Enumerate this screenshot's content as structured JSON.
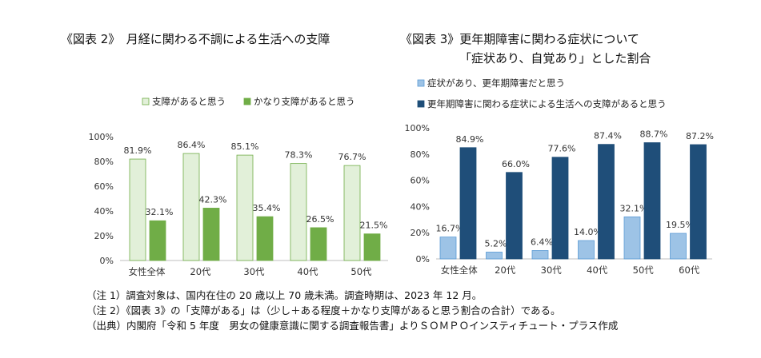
{
  "titles": {
    "chart1": "《図表 2》　月経に関わる不調による生活への支障",
    "chart2_line1": "《図表 3》更年期障害に関わる症状について",
    "chart2_line2": "「症状あり、自覚あり」とした割合"
  },
  "chart_data": [
    {
      "type": "bar",
      "categories": [
        "女性全体",
        "20代",
        "30代",
        "40代",
        "50代"
      ],
      "series": [
        {
          "name": "支障があると思う",
          "values": [
            81.9,
            86.4,
            85.1,
            78.3,
            76.7
          ],
          "labels": [
            "81.9%",
            "86.4%",
            "85.1%",
            "78.3%",
            "76.7%"
          ],
          "color": "#e2f0d9",
          "stroke": "#70ad47"
        },
        {
          "name": "かなり支障があると思う",
          "values": [
            32.1,
            42.3,
            35.4,
            26.5,
            21.5
          ],
          "labels": [
            "32.1%",
            "42.3%",
            "35.4%",
            "26.5%",
            "21.5%"
          ],
          "color": "#70ad47",
          "stroke": "#70ad47"
        }
      ],
      "yticks": [
        "0%",
        "20%",
        "40%",
        "60%",
        "80%",
        "100%"
      ],
      "ylim": [
        0,
        100
      ],
      "legend": "top"
    },
    {
      "type": "bar",
      "categories": [
        "女性全体",
        "20代",
        "30代",
        "40代",
        "50代",
        "60代"
      ],
      "series": [
        {
          "name": "症状があり、更年期障害だと思う",
          "values": [
            16.7,
            5.2,
            6.4,
            14.0,
            32.1,
            19.5
          ],
          "labels": [
            "16.7%",
            "5.2%",
            "6.4%",
            "14.0%",
            "32.1%",
            "19.5%"
          ],
          "color": "#9dc3e6",
          "stroke": "#5b9bd5"
        },
        {
          "name": "更年期障害に関わる症状による生活への支障があると思う",
          "values": [
            84.9,
            66.0,
            77.6,
            87.4,
            88.7,
            87.2
          ],
          "labels": [
            "84.9%",
            "66.0%",
            "77.6%",
            "87.4%",
            "88.7%",
            "87.2%"
          ],
          "color": "#1f4e79",
          "stroke": "#1f4e79"
        }
      ],
      "yticks": [
        "0%",
        "20%",
        "40%",
        "60%",
        "80%",
        "100%"
      ],
      "ylim": [
        0,
        100
      ],
      "legend": "top"
    }
  ],
  "notes": [
    "（注 1）調査対象は、国内在住の 20 歳以上 70 歳未満。調査時期は、2023 年 12 月。",
    "（注 2）《図表 3》の「支障がある」は（少し＋ある程度＋かなり支障があると思う割合の合計）である。",
    "（出典）内閣府「令和 5 年度　男女の健康意識に関する調査報告書」よりＳＯＭＰＯインスティチュート・プラス作成"
  ]
}
